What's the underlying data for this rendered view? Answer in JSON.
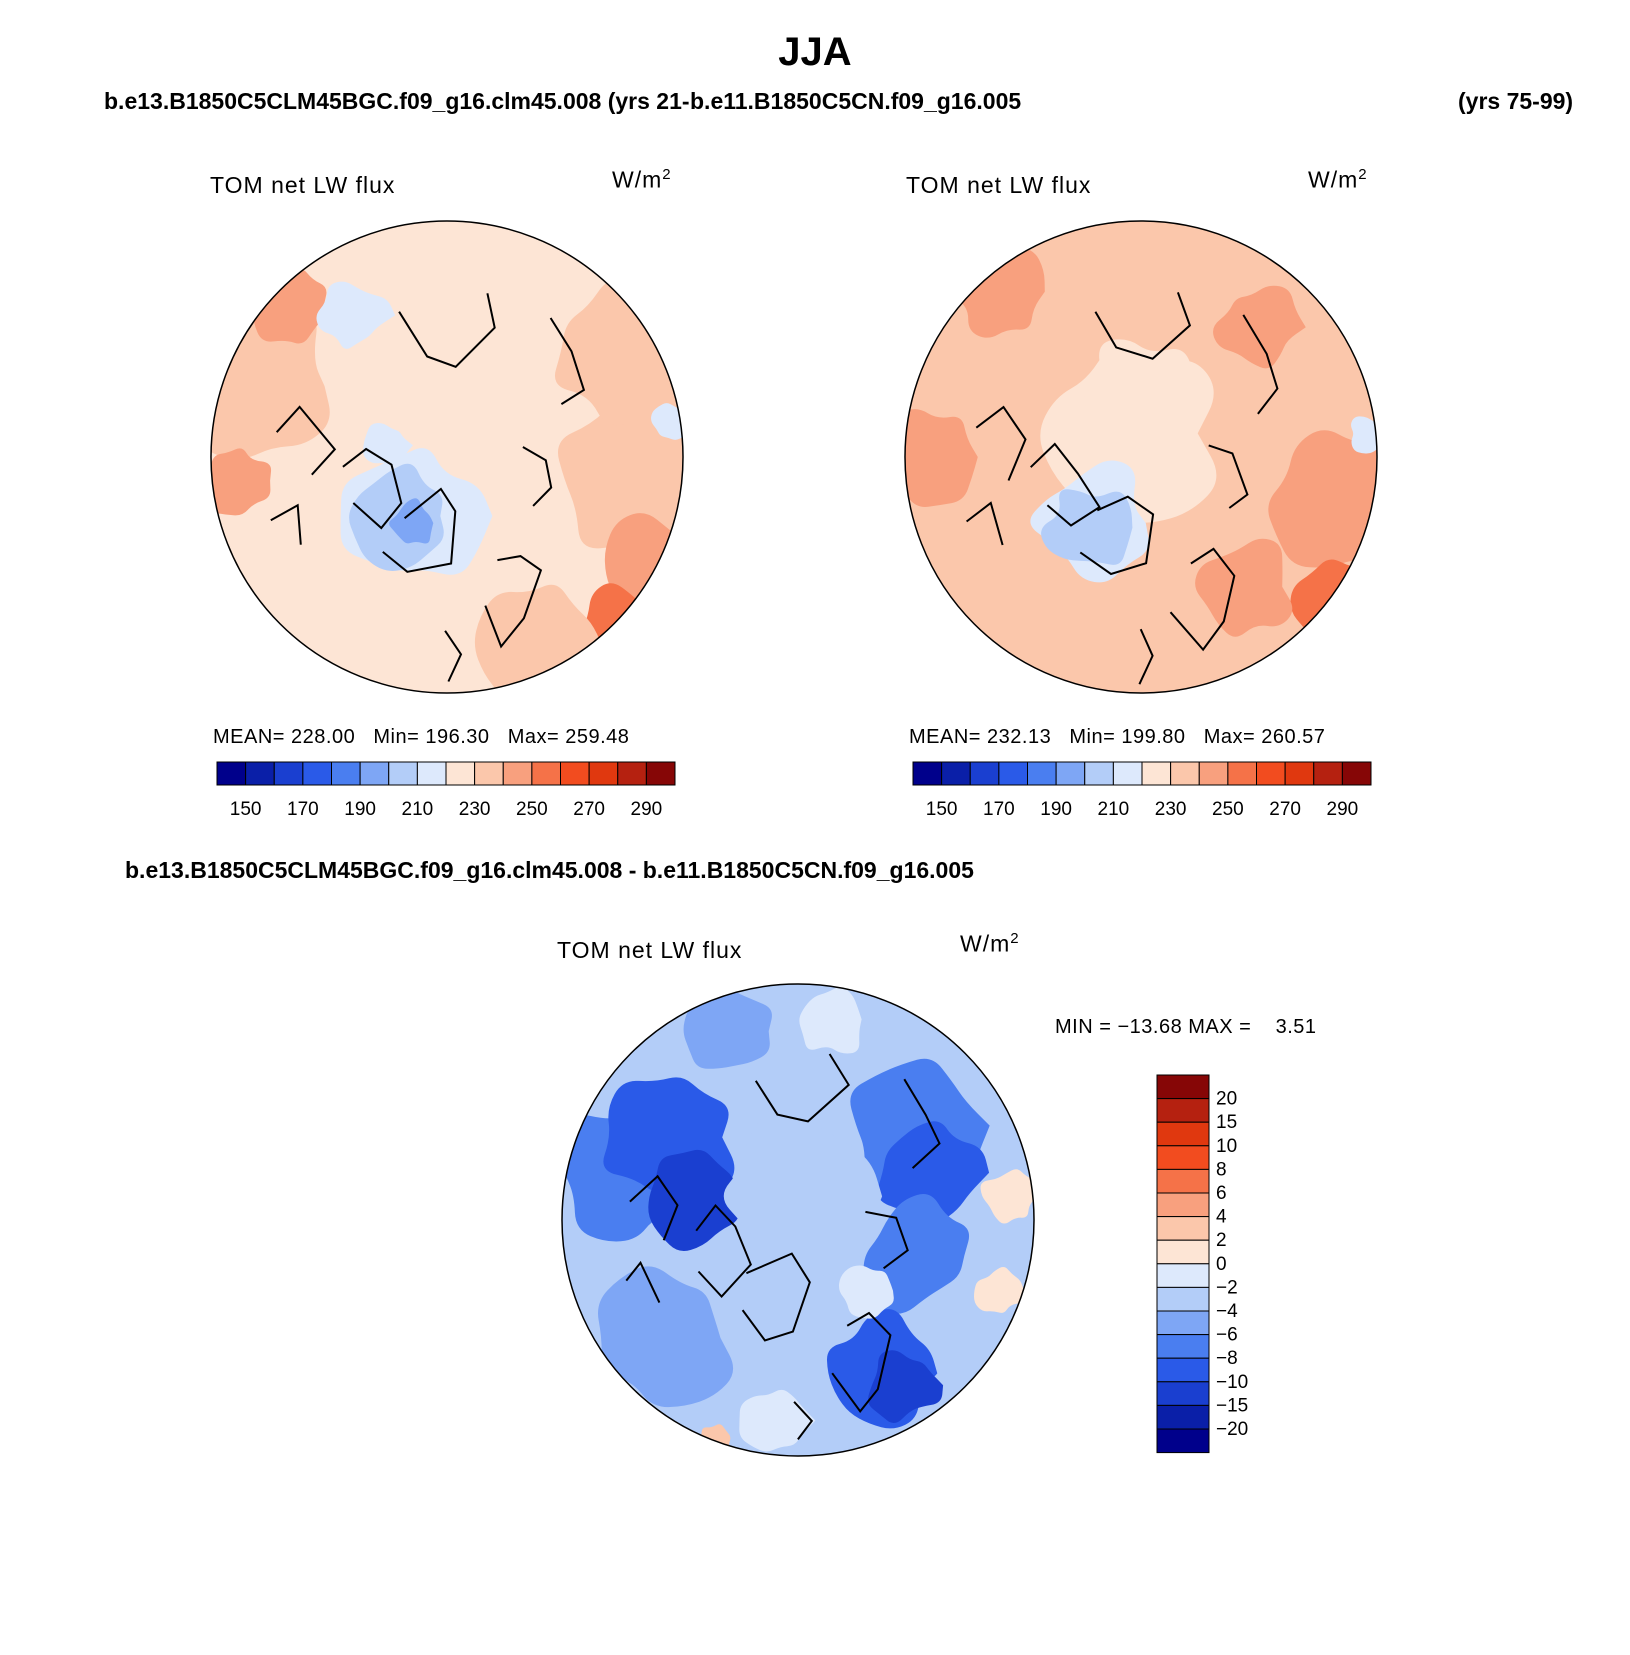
{
  "title": "JJA",
  "case1_label": "b.e13.B1850C5CLM45BGC.f09_g16.clm45.008 (yrs 21-",
  "case2_label": "b.e11.B1850C5CN.f09_g16.005",
  "case2_years": "(yrs 75-99)",
  "diff_label": "b.e13.B1850C5CLM45BGC.f09_g16.clm45.008 - b.e11.B1850C5CN.f09_g16.005",
  "colors": {
    "abs_scale": [
      "#00008b",
      "#0a1fa8",
      "#1a3fd0",
      "#2a5ae8",
      "#4a7ef0",
      "#7ea6f5",
      "#b3cdf8",
      "#dde9fc",
      "#fde5d5",
      "#fbc7ab",
      "#f8a07e",
      "#f57248",
      "#f24c1f",
      "#e0380f",
      "#b52110",
      "#860606"
    ],
    "diff_scale": [
      "#00008b",
      "#0a1fa8",
      "#1a3fd0",
      "#2a5ae8",
      "#4a7ef0",
      "#7ea6f5",
      "#b3cdf8",
      "#dde9fc",
      "#fde5d5",
      "#fbc7ab",
      "#f8a07e",
      "#f57248",
      "#f24c1f",
      "#e0380f",
      "#b52110",
      "#860606"
    ]
  },
  "chart_data": [
    {
      "type": "heatmap",
      "projection": "north-polar-stereographic",
      "title": "TOM net LW flux",
      "units": "W/m",
      "units_sup": "2",
      "stats": {
        "mean_label": "MEAN=",
        "mean": "228.00",
        "min_label": "Min=",
        "min": "196.30",
        "max_label": "Max=",
        "max": "259.48"
      },
      "colorbar": {
        "orientation": "horizontal",
        "ticks": [
          "150",
          "170",
          "190",
          "210",
          "230",
          "250",
          "270",
          "290"
        ]
      },
      "field_description": "mostly 220-240 over Arctic, 190-210 over Greenland, 240-260 at lower latitudes"
    },
    {
      "type": "heatmap",
      "projection": "north-polar-stereographic",
      "title": "TOM net LW flux",
      "units": "W/m",
      "units_sup": "2",
      "stats": {
        "mean_label": "MEAN=",
        "mean": "232.13",
        "min_label": "Min=",
        "min": "199.80",
        "max_label": "Max=",
        "max": "260.57"
      },
      "colorbar": {
        "orientation": "horizontal",
        "ticks": [
          "150",
          "170",
          "190",
          "210",
          "230",
          "250",
          "270",
          "290"
        ]
      },
      "field_description": "mostly 230-250, 200-210 over Greenland"
    },
    {
      "type": "heatmap",
      "projection": "north-polar-stereographic",
      "title": "TOM net LW flux",
      "units": "W/m",
      "units_sup": "2",
      "stats": {
        "min_label": "MIN =",
        "min": "−13.68",
        "max_label": "MAX =",
        "max": "3.51"
      },
      "colorbar": {
        "orientation": "vertical",
        "ticks": [
          "20",
          "15",
          "10",
          "8",
          "6",
          "4",
          "2",
          "0",
          "−2",
          "−4",
          "−6",
          "−8",
          "−10",
          "−15",
          "−20"
        ]
      },
      "field_description": "mostly -2 to -10 difference, small positive areas"
    }
  ]
}
